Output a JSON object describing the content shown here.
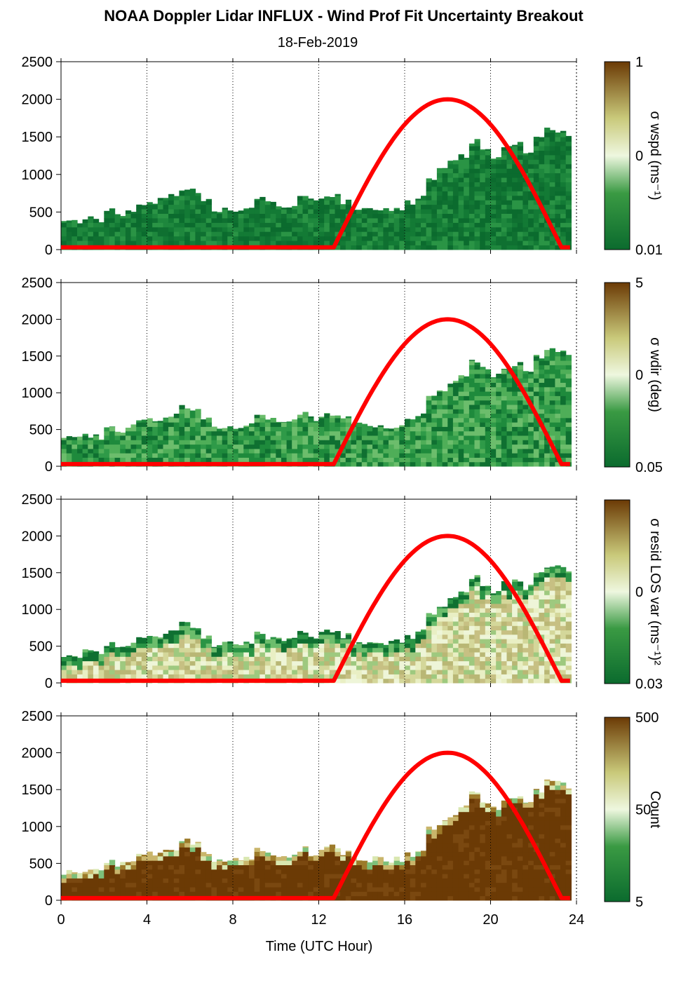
{
  "chart_data": [
    {
      "type": "heatmap",
      "title": "NOAA Doppler Lidar INFLUX - Wind Prof Fit Uncertainty Breakout",
      "subtitle": "18-Feb-2019",
      "ylim": [
        0,
        2500
      ],
      "xlim": [
        0,
        24
      ],
      "y_ticks": [
        "0",
        "500",
        "1000",
        "1500",
        "2000",
        "2500"
      ],
      "colorbar": {
        "label": "σ wspd (ms⁻¹)",
        "ticks": [
          "1",
          "0",
          "0.01"
        ]
      },
      "grid": "dotted vertical lines every 4 hours",
      "dominant_color": "dark green",
      "overlay": {
        "name": "solar elevation curve",
        "color": "#ff0000",
        "x": [
          0,
          12.7,
          18,
          23.3,
          24
        ],
        "y": [
          30,
          30,
          2000,
          30,
          30
        ]
      }
    },
    {
      "type": "heatmap",
      "ylim": [
        0,
        2500
      ],
      "xlim": [
        0,
        24
      ],
      "y_ticks": [
        "0",
        "500",
        "1000",
        "1500",
        "2000",
        "2500"
      ],
      "colorbar": {
        "label": "σ wdir (deg)",
        "ticks": [
          "5",
          "0",
          "0.05"
        ]
      },
      "dominant_color": "medium green"
    },
    {
      "type": "heatmap",
      "ylim": [
        0,
        2500
      ],
      "xlim": [
        0,
        24
      ],
      "y_ticks": [
        "0",
        "500",
        "1000",
        "1500",
        "2000",
        "2500"
      ],
      "colorbar": {
        "label": "σ resid LOS var (ms⁻¹)²",
        "ticks": [
          "0",
          "0.03"
        ]
      },
      "dominant_color": "pale yellow-green"
    },
    {
      "type": "heatmap",
      "ylim": [
        0,
        2500
      ],
      "xlim": [
        0,
        24
      ],
      "y_ticks": [
        "0",
        "500",
        "1000",
        "1500",
        "2000",
        "2500"
      ],
      "x_ticks": [
        "0",
        "4",
        "8",
        "12",
        "16",
        "20",
        "24"
      ],
      "xlabel": "Time (UTC Hour)",
      "colorbar": {
        "label": "Count",
        "ticks": [
          "500",
          "50",
          "5"
        ]
      },
      "dominant_color": "dark brown"
    }
  ],
  "profile_top_m": {
    "x": [
      0,
      0.5,
      1,
      1.5,
      2,
      2.5,
      3,
      3.5,
      4,
      4.5,
      5,
      5.5,
      6,
      6.5,
      7,
      7.5,
      8,
      8.5,
      9,
      9.5,
      10,
      10.5,
      11,
      11.5,
      12,
      12.5,
      13,
      13.5,
      14,
      14.5,
      15,
      15.5,
      16,
      16.5,
      17,
      17.5,
      18,
      18.5,
      19,
      19.5,
      20,
      20.5,
      21,
      21.5,
      22,
      22.5,
      23,
      23.5
    ],
    "y": [
      380,
      380,
      420,
      400,
      520,
      480,
      540,
      600,
      620,
      650,
      700,
      820,
      780,
      640,
      520,
      560,
      540,
      560,
      680,
      620,
      580,
      600,
      700,
      640,
      700,
      720,
      640,
      560,
      540,
      560,
      540,
      560,
      620,
      700,
      960,
      1050,
      1150,
      1250,
      1450,
      1350,
      1250,
      1350,
      1400,
      1300,
      1500,
      1600,
      1580,
      1550
    ]
  }
}
